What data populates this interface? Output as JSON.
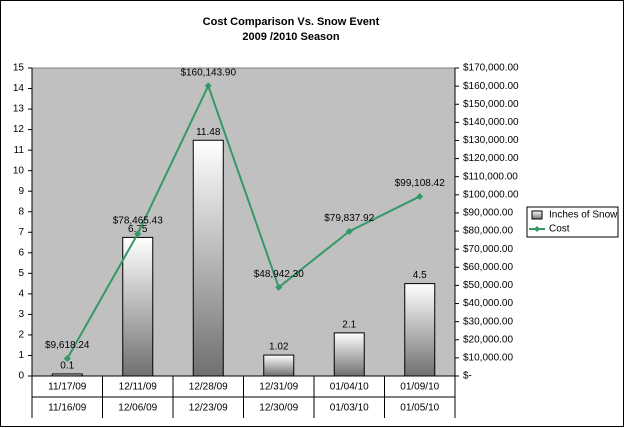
{
  "chart_data": {
    "type": "bar_line",
    "title": "Cost Comparison Vs. Snow Event",
    "subtitle": "2009 /2010 Season",
    "categories": [
      [
        "11/17/09",
        "11/16/09"
      ],
      [
        "12/11/09",
        "12/06/09"
      ],
      [
        "12/28/09",
        "12/23/09"
      ],
      [
        "12/31/09",
        "12/30/09"
      ],
      [
        "01/04/10",
        "01/03/10"
      ],
      [
        "01/09/10",
        "01/05/10"
      ]
    ],
    "series": [
      {
        "name": "Inches of Snow",
        "type": "bar",
        "color": "#808080",
        "values": [
          0.1,
          6.75,
          11.48,
          1.02,
          2.1,
          4.5
        ]
      },
      {
        "name": "Cost",
        "type": "line",
        "axis": "y2",
        "color": "#339966",
        "values": [
          9618.24,
          78465.43,
          160143.9,
          48942.3,
          79837.92,
          99108.42
        ],
        "value_labels": [
          "$9,618.24",
          "$78,465.43",
          "$160,143.90",
          "$48,942.30",
          "$79,837.92",
          "$99,108.42"
        ]
      }
    ],
    "ylim": [
      0,
      15
    ],
    "yticks": [
      0,
      1,
      2,
      3,
      4,
      5,
      6,
      7,
      8,
      9,
      10,
      11,
      12,
      13,
      14,
      15
    ],
    "y2lim": [
      0,
      170000
    ],
    "y2ticks": [
      {
        "value": 0,
        "label": "$-"
      },
      {
        "value": 10000,
        "label": "$10,000.00"
      },
      {
        "value": 20000,
        "label": "$20,000.00"
      },
      {
        "value": 30000,
        "label": "$30,000.00"
      },
      {
        "value": 40000,
        "label": "$40,000.00"
      },
      {
        "value": 50000,
        "label": "$50,000.00"
      },
      {
        "value": 60000,
        "label": "$60,000.00"
      },
      {
        "value": 70000,
        "label": "$70,000.00"
      },
      {
        "value": 80000,
        "label": "$80,000.00"
      },
      {
        "value": 90000,
        "label": "$90,000.00"
      },
      {
        "value": 100000,
        "label": "$100,000.00"
      },
      {
        "value": 110000,
        "label": "$110,000.00"
      },
      {
        "value": 120000,
        "label": "$120,000.00"
      },
      {
        "value": 130000,
        "label": "$130,000.00"
      },
      {
        "value": 140000,
        "label": "$140,000.00"
      },
      {
        "value": 150000,
        "label": "$150,000.00"
      },
      {
        "value": 160000,
        "label": "$160,000.00"
      },
      {
        "value": 170000,
        "label": "$170,000.00"
      }
    ],
    "plot_background": "#c0c0c0",
    "legend": "right"
  }
}
